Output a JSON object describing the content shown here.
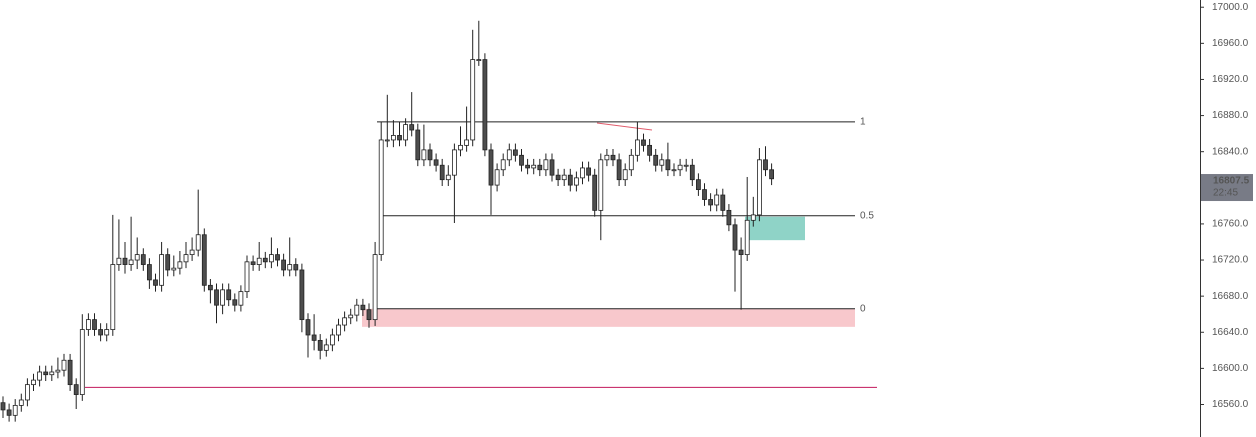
{
  "chart_data": {
    "type": "candlestick",
    "open": [
      16562,
      16554,
      16548,
      16559,
      16565,
      16582,
      16587,
      16596,
      16593,
      16596,
      16598,
      16609,
      16582,
      16571,
      16643,
      16654,
      16643,
      16637,
      16643,
      16715,
      16722,
      16715,
      16720,
      16726,
      16715,
      16698,
      16692,
      16726,
      16709,
      16711,
      16718,
      16726,
      16731,
      16748,
      16692,
      16687,
      16670,
      16687,
      16676,
      16670,
      16685,
      16718,
      16715,
      16722,
      16718,
      16726,
      16720,
      16709,
      16715,
      16709,
      16654,
      16637,
      16631,
      16620,
      16626,
      16637,
      16648,
      16656,
      16659,
      16670,
      16665,
      16654,
      16726,
      16853,
      16853,
      16858,
      16853,
      16870,
      16864,
      16831,
      16842,
      16831,
      16825,
      16809,
      16814,
      16842,
      16847,
      16853,
      16942,
      16942,
      16842,
      16803,
      16820,
      16831,
      16842,
      16836,
      16825,
      16822,
      16825,
      16820,
      16831,
      16814,
      16809,
      16814,
      16803,
      16811,
      16822,
      16814,
      16775,
      16831,
      16836,
      16831,
      16809,
      16820,
      16836,
      16853,
      16847,
      16836,
      16825,
      16831,
      16820,
      16820,
      16825,
      16825,
      16809,
      16798,
      16787,
      16781,
      16792,
      16775,
      16759,
      16731,
      16726,
      16764,
      16770,
      16831,
      16820
    ],
    "high": [
      16569,
      16561,
      16566,
      16572,
      16589,
      16594,
      16603,
      16603,
      16603,
      16612,
      16616,
      16616,
      16589,
      16660,
      16661,
      16661,
      16650,
      16650,
      16770,
      16765,
      16740,
      16768,
      16745,
      16733,
      16722,
      16705,
      16740,
      16733,
      16725,
      16730,
      16740,
      16745,
      16798,
      16755,
      16699,
      16694,
      16694,
      16694,
      16683,
      16692,
      16725,
      16725,
      16740,
      16729,
      16745,
      16733,
      16727,
      16745,
      16722,
      16716,
      16661,
      16660,
      16638,
      16633,
      16644,
      16655,
      16663,
      16666,
      16677,
      16677,
      16672,
      16740,
      16873,
      16903,
      16875,
      16873,
      16877,
      16906,
      16871,
      16870,
      16849,
      16838,
      16832,
      16825,
      16849,
      16868,
      16890,
      16975,
      16985,
      16949,
      16849,
      16827,
      16838,
      16849,
      16849,
      16843,
      16832,
      16832,
      16832,
      16838,
      16838,
      16821,
      16821,
      16821,
      16818,
      16829,
      16829,
      16821,
      16838,
      16843,
      16843,
      16838,
      16827,
      16843,
      16873,
      16860,
      16854,
      16843,
      16838,
      16850,
      16827,
      16832,
      16832,
      16832,
      16816,
      16805,
      16794,
      16799,
      16799,
      16782,
      16766,
      16745,
      16812,
      16790,
      16844,
      16846,
      16827
    ],
    "low": [
      16545,
      16541,
      16541,
      16552,
      16558,
      16575,
      16580,
      16586,
      16586,
      16589,
      16591,
      16575,
      16555,
      16564,
      16636,
      16636,
      16630,
      16630,
      16636,
      16708,
      16705,
      16708,
      16710,
      16708,
      16688,
      16685,
      16685,
      16702,
      16702,
      16704,
      16711,
      16719,
      16724,
      16685,
      16672,
      16650,
      16660,
      16669,
      16663,
      16663,
      16678,
      16708,
      16708,
      16711,
      16711,
      16713,
      16702,
      16702,
      16702,
      16640,
      16612,
      16620,
      16610,
      16613,
      16619,
      16630,
      16641,
      16649,
      16652,
      16658,
      16645,
      16647,
      16719,
      16845,
      16845,
      16846,
      16846,
      16857,
      16824,
      16824,
      16824,
      16818,
      16802,
      16802,
      16761,
      16835,
      16840,
      16846,
      16935,
      16835,
      16770,
      16796,
      16813,
      16824,
      16829,
      16818,
      16815,
      16815,
      16813,
      16813,
      16807,
      16802,
      16802,
      16796,
      16796,
      16804,
      16807,
      16768,
      16742,
      16824,
      16824,
      16802,
      16802,
      16813,
      16829,
      16840,
      16829,
      16818,
      16818,
      16813,
      16813,
      16813,
      16818,
      16802,
      16791,
      16780,
      16774,
      16774,
      16768,
      16752,
      16685,
      16665,
      16719,
      16757,
      16763,
      16813,
      16803
    ],
    "close": [
      16554,
      16548,
      16559,
      16565,
      16582,
      16587,
      16596,
      16593,
      16596,
      16598,
      16609,
      16582,
      16571,
      16643,
      16654,
      16643,
      16637,
      16643,
      16715,
      16722,
      16715,
      16720,
      16726,
      16715,
      16698,
      16692,
      16726,
      16709,
      16711,
      16718,
      16726,
      16731,
      16748,
      16692,
      16687,
      16670,
      16687,
      16676,
      16670,
      16685,
      16718,
      16715,
      16722,
      16718,
      16726,
      16720,
      16709,
      16715,
      16709,
      16654,
      16637,
      16631,
      16620,
      16626,
      16637,
      16648,
      16656,
      16659,
      16670,
      16665,
      16654,
      16726,
      16853,
      16853,
      16858,
      16853,
      16870,
      16864,
      16831,
      16842,
      16831,
      16825,
      16809,
      16814,
      16842,
      16847,
      16853,
      16942,
      16942,
      16842,
      16803,
      16820,
      16831,
      16842,
      16836,
      16825,
      16822,
      16825,
      16820,
      16831,
      16814,
      16809,
      16814,
      16803,
      16811,
      16822,
      16814,
      16775,
      16831,
      16836,
      16831,
      16809,
      16820,
      16836,
      16853,
      16847,
      16836,
      16825,
      16831,
      16820,
      16820,
      16825,
      16825,
      16809,
      16798,
      16787,
      16781,
      16792,
      16775,
      16759,
      16731,
      16726,
      16764,
      16770,
      16831,
      16820,
      16810
    ],
    "up_color": "#ffffff",
    "down_color": "#4d4d4d",
    "border_color": "#222222",
    "ylim": [
      16524,
      17008
    ],
    "yticks": [
      {
        "value": 17000,
        "label": "17000.0"
      },
      {
        "value": 16960,
        "label": "16960.0"
      },
      {
        "value": 16920,
        "label": "16920.0"
      },
      {
        "value": 16880,
        "label": "16880.0"
      },
      {
        "value": 16840,
        "label": "16840.0"
      },
      {
        "value": 16800,
        "label": "16800.0"
      },
      {
        "value": 16760,
        "label": "16760.0"
      },
      {
        "value": 16720,
        "label": "16720.0"
      },
      {
        "value": 16680,
        "label": "16680.0"
      },
      {
        "value": 16640,
        "label": "16640.0"
      },
      {
        "value": 16600,
        "label": "16600.0"
      },
      {
        "value": 16560,
        "label": "16560.0"
      }
    ],
    "levels": [
      {
        "name": "1",
        "price": 16873
      },
      {
        "name": "0.5",
        "price": 16769
      },
      {
        "name": "0",
        "price": 16666
      }
    ],
    "horizontal_line": {
      "price": 16579,
      "color": "#c2185b"
    },
    "zones": [
      {
        "low": 16646,
        "high": 16666,
        "color": "#f8c8cc"
      },
      {
        "low": 16742,
        "high": 16768,
        "color": "#8fd3c7"
      }
    ],
    "last_price": 16807.5,
    "last_time": "22:45",
    "last_color": "#787b86"
  }
}
